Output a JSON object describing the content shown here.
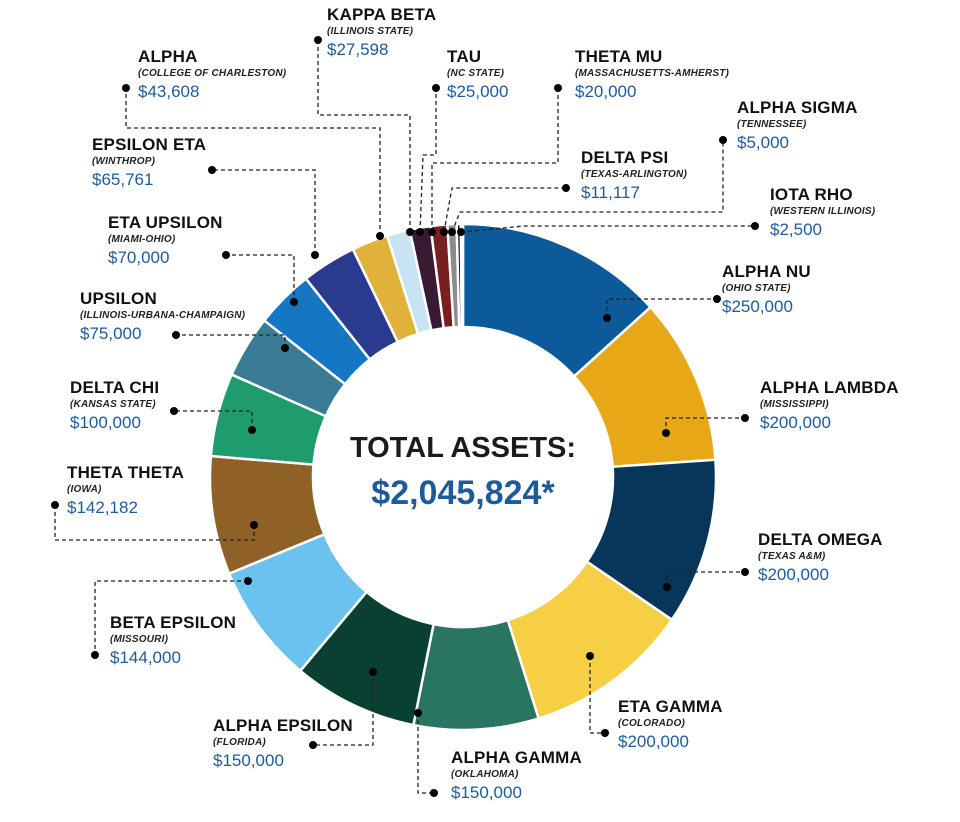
{
  "chart_data": {
    "type": "pie",
    "title": "TOTAL ASSETS:",
    "total_label": "$2,045,824*",
    "slices": [
      {
        "chapter": "ALPHA NU",
        "school": "(OHIO STATE)",
        "amount_label": "$250,000",
        "value": 250000,
        "color": "#0d5a9a"
      },
      {
        "chapter": "ALPHA LAMBDA",
        "school": "(MISSISSIPPI)",
        "amount_label": "$200,000",
        "value": 200000,
        "color": "#e8a717"
      },
      {
        "chapter": "DELTA OMEGA",
        "school": "(TEXAS A&M)",
        "amount_label": "$200,000",
        "value": 200000,
        "color": "#08365a"
      },
      {
        "chapter": "ETA GAMMA",
        "school": "(COLORADO)",
        "amount_label": "$200,000",
        "value": 200000,
        "color": "#f7cf45"
      },
      {
        "chapter": "ALPHA GAMMA",
        "school": "(OKLAHOMA)",
        "amount_label": "$150,000",
        "value": 150000,
        "color": "#2a7462"
      },
      {
        "chapter": "ALPHA EPSILON",
        "school": "(FLORIDA)",
        "amount_label": "$150,000",
        "value": 150000,
        "color": "#0a4031"
      },
      {
        "chapter": "BETA EPSILON",
        "school": "(MISSOURI)",
        "amount_label": "$144,000",
        "value": 144000,
        "color": "#6cc2ee"
      },
      {
        "chapter": "THETA THETA",
        "school": "(IOWA)",
        "amount_label": "$142,182",
        "value": 142182,
        "color": "#8f6127"
      },
      {
        "chapter": "DELTA CHI",
        "school": "(KANSAS STATE)",
        "amount_label": "$100,000",
        "value": 100000,
        "color": "#1e9c6d"
      },
      {
        "chapter": "UPSILON",
        "school": "(ILLINOIS-URBANA-CHAMPAIGN)",
        "amount_label": "$75,000",
        "value": 75000,
        "color": "#3a7c95"
      },
      {
        "chapter": "ETA UPSILON",
        "school": "(MIAMI-OHIO)",
        "amount_label": "$70,000",
        "value": 70000,
        "color": "#1577c4"
      },
      {
        "chapter": "EPSILON ETA",
        "school": "(WINTHROP)",
        "amount_label": "$65,761",
        "value": 65761,
        "color": "#2a3a8f"
      },
      {
        "chapter": "ALPHA",
        "school": "(COLLEGE OF CHARLESTON)",
        "amount_label": "$43,608",
        "value": 43608,
        "color": "#e1b23b"
      },
      {
        "chapter": "KAPPA BETA",
        "school": "(ILLINOIS STATE)",
        "amount_label": "$27,598",
        "value": 27598,
        "color": "#c7e3f4"
      },
      {
        "chapter": "TAU",
        "school": "(NC STATE)",
        "amount_label": "$25,000",
        "value": 25000,
        "color": "#3a1a33"
      },
      {
        "chapter": "THETA MU",
        "school": "(MASSACHUSETTS-AMHERST)",
        "amount_label": "$20,000",
        "value": 20000,
        "color": "#7a1f1f"
      },
      {
        "chapter": "DELTA PSI",
        "school": "(TEXAS-ARLINGTON)",
        "amount_label": "$11,117",
        "value": 11117,
        "color": "#8c8c8c"
      },
      {
        "chapter": "ALPHA SIGMA",
        "school": "(TENNESSEE)",
        "amount_label": "$5,000",
        "value": 5000,
        "color": "#1a1a1a"
      },
      {
        "chapter": "IOTA RHO",
        "school": "(WESTERN ILLINOIS)",
        "amount_label": "$2,500",
        "value": 2500,
        "color": "#000000"
      }
    ]
  }
}
